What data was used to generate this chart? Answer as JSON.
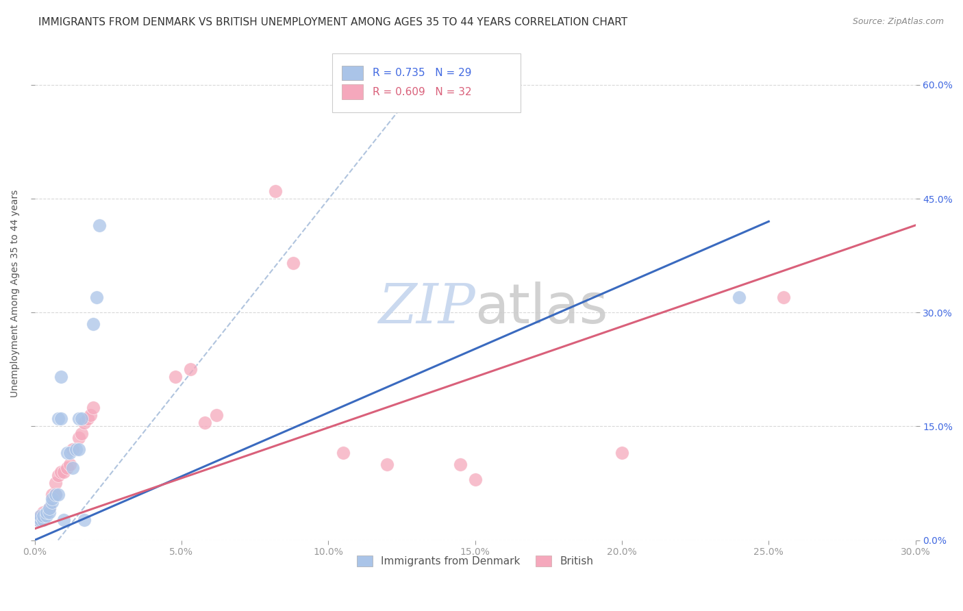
{
  "title": "IMMIGRANTS FROM DENMARK VS BRITISH UNEMPLOYMENT AMONG AGES 35 TO 44 YEARS CORRELATION CHART",
  "source": "Source: ZipAtlas.com",
  "xlabel_vals": [
    0.0,
    0.05,
    0.1,
    0.15,
    0.2,
    0.25,
    0.3
  ],
  "xlabel_ticks": [
    "0.0%",
    "5.0%",
    "10.0%",
    "15.0%",
    "20.0%",
    "25.0%",
    "30.0%"
  ],
  "ylabel_vals_right": [
    0.0,
    0.15,
    0.3,
    0.45,
    0.6
  ],
  "ylabel_ticks_right": [
    "0.0%",
    "15.0%",
    "30.0%",
    "45.0%",
    "60.0%"
  ],
  "xlim": [
    0.0,
    0.3
  ],
  "ylim": [
    0.0,
    0.65
  ],
  "watermark_zip": "ZIP",
  "watermark_atlas": "atlas",
  "legend_r_blue": "R = 0.735",
  "legend_n_blue": "N = 29",
  "legend_r_pink": "R = 0.609",
  "legend_n_pink": "N = 32",
  "legend_label_blue": "Immigrants from Denmark",
  "legend_label_pink": "British",
  "blue_color": "#aac4e8",
  "pink_color": "#f5a8bc",
  "blue_line_color": "#3a6abf",
  "pink_line_color": "#d9607a",
  "dashed_line_color": "#b0c4de",
  "blue_scatter": [
    [
      0.001,
      0.027
    ],
    [
      0.002,
      0.027
    ],
    [
      0.002,
      0.032
    ],
    [
      0.003,
      0.027
    ],
    [
      0.003,
      0.032
    ],
    [
      0.004,
      0.032
    ],
    [
      0.004,
      0.037
    ],
    [
      0.005,
      0.037
    ],
    [
      0.005,
      0.042
    ],
    [
      0.006,
      0.05
    ],
    [
      0.006,
      0.055
    ],
    [
      0.007,
      0.06
    ],
    [
      0.008,
      0.06
    ],
    [
      0.008,
      0.16
    ],
    [
      0.009,
      0.16
    ],
    [
      0.009,
      0.215
    ],
    [
      0.01,
      0.027
    ],
    [
      0.011,
      0.115
    ],
    [
      0.012,
      0.115
    ],
    [
      0.013,
      0.095
    ],
    [
      0.014,
      0.12
    ],
    [
      0.015,
      0.12
    ],
    [
      0.015,
      0.16
    ],
    [
      0.016,
      0.16
    ],
    [
      0.017,
      0.027
    ],
    [
      0.02,
      0.285
    ],
    [
      0.021,
      0.32
    ],
    [
      0.022,
      0.415
    ],
    [
      0.24,
      0.32
    ]
  ],
  "pink_scatter": [
    [
      0.001,
      0.027
    ],
    [
      0.002,
      0.032
    ],
    [
      0.003,
      0.037
    ],
    [
      0.004,
      0.037
    ],
    [
      0.005,
      0.042
    ],
    [
      0.006,
      0.06
    ],
    [
      0.007,
      0.06
    ],
    [
      0.007,
      0.075
    ],
    [
      0.008,
      0.085
    ],
    [
      0.009,
      0.09
    ],
    [
      0.01,
      0.09
    ],
    [
      0.011,
      0.095
    ],
    [
      0.012,
      0.1
    ],
    [
      0.013,
      0.12
    ],
    [
      0.015,
      0.135
    ],
    [
      0.016,
      0.14
    ],
    [
      0.017,
      0.155
    ],
    [
      0.018,
      0.16
    ],
    [
      0.019,
      0.165
    ],
    [
      0.02,
      0.175
    ],
    [
      0.048,
      0.215
    ],
    [
      0.053,
      0.225
    ],
    [
      0.058,
      0.155
    ],
    [
      0.062,
      0.165
    ],
    [
      0.082,
      0.46
    ],
    [
      0.088,
      0.365
    ],
    [
      0.105,
      0.115
    ],
    [
      0.12,
      0.1
    ],
    [
      0.145,
      0.1
    ],
    [
      0.15,
      0.08
    ],
    [
      0.2,
      0.115
    ],
    [
      0.255,
      0.32
    ]
  ],
  "blue_reg_line": [
    [
      0.0,
      0.0
    ],
    [
      0.25,
      0.42
    ]
  ],
  "pink_reg_line": [
    [
      0.0,
      0.015
    ],
    [
      0.3,
      0.415
    ]
  ],
  "dashed_line": [
    [
      0.008,
      0.0
    ],
    [
      0.135,
      0.62
    ]
  ],
  "grid_color": "#d8d8d8",
  "background_color": "#ffffff",
  "title_fontsize": 11,
  "axis_label_color": "#4169e1",
  "tick_color": "#999999",
  "ylabel": "Unemployment Among Ages 35 to 44 years"
}
